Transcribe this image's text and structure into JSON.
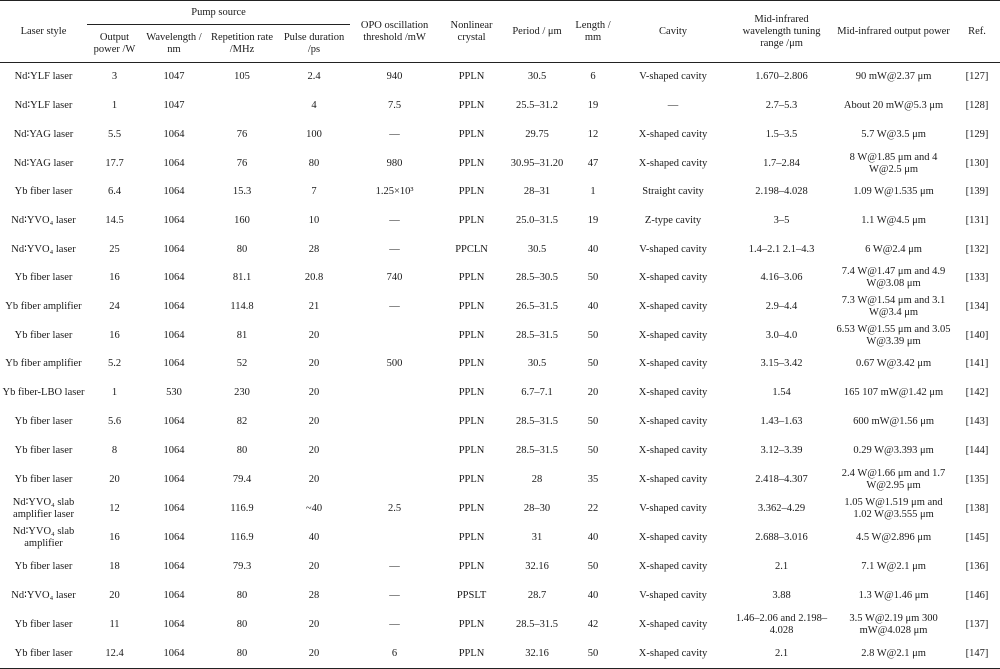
{
  "headers": {
    "laser_style": "Laser style",
    "pump_source": "Pump source",
    "output_power": "Output power /W",
    "wavelength": "Wavelength / nm",
    "repetition_rate": "Repetition rate /MHz",
    "pulse_duration": "Pulse duration /ps",
    "opo_threshold": "OPO oscillation threshold /mW",
    "nonlinear_crystal": "Nonlinear crystal",
    "period": "Period / μm",
    "length": "Length / mm",
    "cavity": "Cavity",
    "tuning_range": "Mid-infrared wavelength tuning range /μm",
    "output_power_mir": "Mid-infrared output power",
    "ref": "Ref."
  },
  "rows": [
    {
      "laser": "Nd∶YLF laser",
      "power": "3",
      "wl": "1047",
      "rep": "105",
      "pulse": "2.4",
      "thr": "940",
      "crystal": "PPLN",
      "period": "30.5",
      "len": "6",
      "cavity": "V-shaped cavity",
      "range": "1.670–2.806",
      "out": "90 mW@2.37 μm",
      "ref": "[127]"
    },
    {
      "laser": "Nd∶YLF laser",
      "power": "1",
      "wl": "1047",
      "rep": "",
      "pulse": "4",
      "thr": "7.5",
      "crystal": "PPLN",
      "period": "25.5–31.2",
      "len": "19",
      "cavity": "—",
      "range": "2.7–5.3",
      "out": "About 20 mW@5.3 μm",
      "ref": "[128]"
    },
    {
      "laser": "Nd∶YAG laser",
      "power": "5.5",
      "wl": "1064",
      "rep": "76",
      "pulse": "100",
      "thr": "—",
      "crystal": "PPLN",
      "period": "29.75",
      "len": "12",
      "cavity": "X-shaped cavity",
      "range": "1.5–3.5",
      "out": "5.7 W@3.5 μm",
      "ref": "[129]"
    },
    {
      "laser": "Nd∶YAG laser",
      "power": "17.7",
      "wl": "1064",
      "rep": "76",
      "pulse": "80",
      "thr": "980",
      "crystal": "PPLN",
      "period": "30.95–31.20",
      "len": "47",
      "cavity": "X-shaped cavity",
      "range": "1.7–2.84",
      "out": "8 W@1.85 μm and 4 W@2.5 μm",
      "ref": "[130]"
    },
    {
      "laser": "Yb fiber laser",
      "power": "6.4",
      "wl": "1064",
      "rep": "15.3",
      "pulse": "7",
      "thr": "1.25×10³",
      "crystal": "PPLN",
      "period": "28–31",
      "len": "1",
      "cavity": "Straight cavity",
      "range": "2.198–4.028",
      "out": "1.09 W@1.535 μm",
      "ref": "[139]"
    },
    {
      "laser": "Nd∶YVO₄ laser",
      "power": "14.5",
      "wl": "1064",
      "rep": "160",
      "pulse": "10",
      "thr": "—",
      "crystal": "PPLN",
      "period": "25.0–31.5",
      "len": "19",
      "cavity": "Z-type cavity",
      "range": "3–5",
      "out": "1.1 W@4.5 μm",
      "ref": "[131]"
    },
    {
      "laser": "Nd∶YVO₄ laser",
      "power": "25",
      "wl": "1064",
      "rep": "80",
      "pulse": "28",
      "thr": "—",
      "crystal": "PPCLN",
      "period": "30.5",
      "len": "40",
      "cavity": "V-shaped cavity",
      "range": "1.4–2.1 2.1–4.3",
      "out": "6 W@2.4 μm",
      "ref": "[132]"
    },
    {
      "laser": "Yb fiber laser",
      "power": "16",
      "wl": "1064",
      "rep": "81.1",
      "pulse": "20.8",
      "thr": "740",
      "crystal": "PPLN",
      "period": "28.5–30.5",
      "len": "50",
      "cavity": "X-shaped cavity",
      "range": "4.16–3.06",
      "out": "7.4 W@1.47 μm and 4.9 W@3.08 μm",
      "ref": "[133]"
    },
    {
      "laser": "Yb fiber amplifier",
      "power": "24",
      "wl": "1064",
      "rep": "114.8",
      "pulse": "21",
      "thr": "—",
      "crystal": "PPLN",
      "period": "26.5–31.5",
      "len": "40",
      "cavity": "X-shaped cavity",
      "range": "2.9–4.4",
      "out": "7.3 W@1.54 μm and 3.1 W@3.4 μm",
      "ref": "[134]"
    },
    {
      "laser": "Yb fiber laser",
      "power": "16",
      "wl": "1064",
      "rep": "81",
      "pulse": "20",
      "thr": "",
      "crystal": "PPLN",
      "period": "28.5–31.5",
      "len": "50",
      "cavity": "X-shaped cavity",
      "range": "3.0–4.0",
      "out": "6.53 W@1.55 μm and 3.05 W@3.39 μm",
      "ref": "[140]"
    },
    {
      "laser": "Yb fiber amplifier",
      "power": "5.2",
      "wl": "1064",
      "rep": "52",
      "pulse": "20",
      "thr": "500",
      "crystal": "PPLN",
      "period": "30.5",
      "len": "50",
      "cavity": "X-shaped cavity",
      "range": "3.15–3.42",
      "out": "0.67 W@3.42 μm",
      "ref": "[141]"
    },
    {
      "laser": "Yb fiber-LBO laser",
      "power": "1",
      "wl": "530",
      "rep": "230",
      "pulse": "20",
      "thr": "",
      "crystal": "PPLN",
      "period": "6.7–7.1",
      "len": "20",
      "cavity": "X-shaped cavity",
      "range": "1.54",
      "out": "165 107 mW@1.42 μm",
      "ref": "[142]"
    },
    {
      "laser": "Yb fiber laser",
      "power": "5.6",
      "wl": "1064",
      "rep": "82",
      "pulse": "20",
      "thr": "",
      "crystal": "PPLN",
      "period": "28.5–31.5",
      "len": "50",
      "cavity": "X-shaped cavity",
      "range": "1.43–1.63",
      "out": "600 mW@1.56 μm",
      "ref": "[143]"
    },
    {
      "laser": "Yb fiber laser",
      "power": "8",
      "wl": "1064",
      "rep": "80",
      "pulse": "20",
      "thr": "",
      "crystal": "PPLN",
      "period": "28.5–31.5",
      "len": "50",
      "cavity": "X-shaped cavity",
      "range": "3.12–3.39",
      "out": "0.29 W@3.393 μm",
      "ref": "[144]"
    },
    {
      "laser": "Yb fiber laser",
      "power": "20",
      "wl": "1064",
      "rep": "79.4",
      "pulse": "20",
      "thr": "",
      "crystal": "PPLN",
      "period": "28",
      "len": "35",
      "cavity": "X-shaped cavity",
      "range": "2.418–4.307",
      "out": "2.4 W@1.66 μm and 1.7 W@2.95 μm",
      "ref": "[135]"
    },
    {
      "laser": "Nd∶YVO₄ slab amplifier laser",
      "power": "12",
      "wl": "1064",
      "rep": "116.9",
      "pulse": "~40",
      "thr": "2.5",
      "crystal": "PPLN",
      "period": "28–30",
      "len": "22",
      "cavity": "V-shaped cavity",
      "range": "3.362–4.29",
      "out": "1.05 W@1.519 μm and 1.02 W@3.555 μm",
      "ref": "[138]"
    },
    {
      "laser": "Nd∶YVO₄ slab amplifier",
      "power": "16",
      "wl": "1064",
      "rep": "116.9",
      "pulse": "40",
      "thr": "",
      "crystal": "PPLN",
      "period": "31",
      "len": "40",
      "cavity": "X-shaped cavity",
      "range": "2.688–3.016",
      "out": "4.5 W@2.896 μm",
      "ref": "[145]"
    },
    {
      "laser": "Yb fiber laser",
      "power": "18",
      "wl": "1064",
      "rep": "79.3",
      "pulse": "20",
      "thr": "—",
      "crystal": "PPLN",
      "period": "32.16",
      "len": "50",
      "cavity": "X-shaped cavity",
      "range": "2.1",
      "out": "7.1 W@2.1 μm",
      "ref": "[136]"
    },
    {
      "laser": "Nd∶YVO₄ laser",
      "power": "20",
      "wl": "1064",
      "rep": "80",
      "pulse": "28",
      "thr": "—",
      "crystal": "PPSLT",
      "period": "28.7",
      "len": "40",
      "cavity": "V-shaped cavity",
      "range": "3.88",
      "out": "1.3 W@1.46 μm",
      "ref": "[146]"
    },
    {
      "laser": "Yb fiber laser",
      "power": "11",
      "wl": "1064",
      "rep": "80",
      "pulse": "20",
      "thr": "—",
      "crystal": "PPLN",
      "period": "28.5–31.5",
      "len": "42",
      "cavity": "X-shaped cavity",
      "range": "1.46–2.06 and 2.198–4.028",
      "out": "3.5 W@2.19 μm 300 mW@4.028 μm",
      "ref": "[137]"
    },
    {
      "laser": "Yb fiber laser",
      "power": "12.4",
      "wl": "1064",
      "rep": "80",
      "pulse": "20",
      "thr": "6",
      "crystal": "PPLN",
      "period": "32.16",
      "len": "50",
      "cavity": "X-shaped cavity",
      "range": "2.1",
      "out": "2.8 W@2.1 μm",
      "ref": "[147]"
    }
  ]
}
